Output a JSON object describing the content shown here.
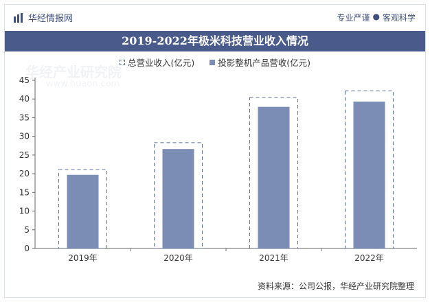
{
  "header": {
    "brand": "华经情报网",
    "slogan_left": "专业严谨",
    "slogan_sep": "●",
    "slogan_right": "客观科学"
  },
  "title": "2019-2022年极米科技营业收入情况",
  "source": "资料来源：公司公报，华经产业研究院整理",
  "watermark": {
    "text": "华经产业研究院",
    "sub": "www.huaon.com"
  },
  "colors": {
    "bar": "#7b8db5",
    "dash": "#5b6d9c",
    "title_bg": "#4a5a8a"
  },
  "chart_data": {
    "type": "bar",
    "categories": [
      "2019年",
      "2020年",
      "2021年",
      "2022年"
    ],
    "series": [
      {
        "name": "总营业收入(亿元)",
        "values": [
          21.1,
          28.3,
          40.4,
          42.2
        ]
      },
      {
        "name": "投影整机产品营收(亿元)",
        "values": [
          19.7,
          26.6,
          37.9,
          39.3
        ]
      }
    ],
    "yticks": [
      0,
      5,
      10,
      15,
      20,
      25,
      30,
      35,
      40,
      45
    ],
    "ylim": [
      0,
      45
    ],
    "grid": false,
    "legend": "top-center"
  }
}
